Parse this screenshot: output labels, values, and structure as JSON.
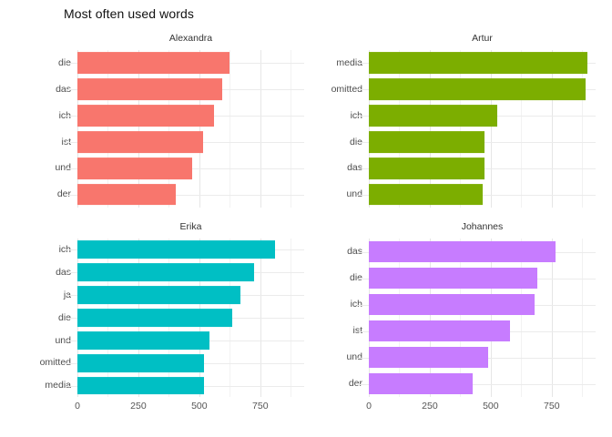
{
  "chart_data": {
    "type": "bar",
    "orientation": "horizontal",
    "title": "Most often used words",
    "xlabel": "",
    "ylabel": "",
    "xlim": [
      0,
      930
    ],
    "x_ticks": [
      0,
      250,
      500,
      750
    ],
    "minor_grid_step": 125,
    "grid": true,
    "legend_position": "none",
    "facets": [
      {
        "name": "Alexandra",
        "color": "#F8766D",
        "categories": [
          "die",
          "das",
          "ich",
          "ist",
          "und",
          "der"
        ],
        "values": [
          625,
          595,
          560,
          515,
          470,
          405
        ]
      },
      {
        "name": "Artur",
        "color": "#7CAE00",
        "categories": [
          "media",
          "omitted",
          "ich",
          "die",
          "das",
          "und"
        ],
        "values": [
          895,
          890,
          525,
          475,
          475,
          465
        ]
      },
      {
        "name": "Erika",
        "color": "#00BFC4",
        "categories": [
          "ich",
          "das",
          "ja",
          "die",
          "und",
          "omitted",
          "media"
        ],
        "values": [
          810,
          725,
          670,
          635,
          540,
          520,
          520
        ]
      },
      {
        "name": "Johannes",
        "color": "#C77CFF",
        "categories": [
          "das",
          "die",
          "ich",
          "ist",
          "und",
          "der"
        ],
        "values": [
          765,
          690,
          680,
          580,
          490,
          425
        ]
      }
    ]
  }
}
